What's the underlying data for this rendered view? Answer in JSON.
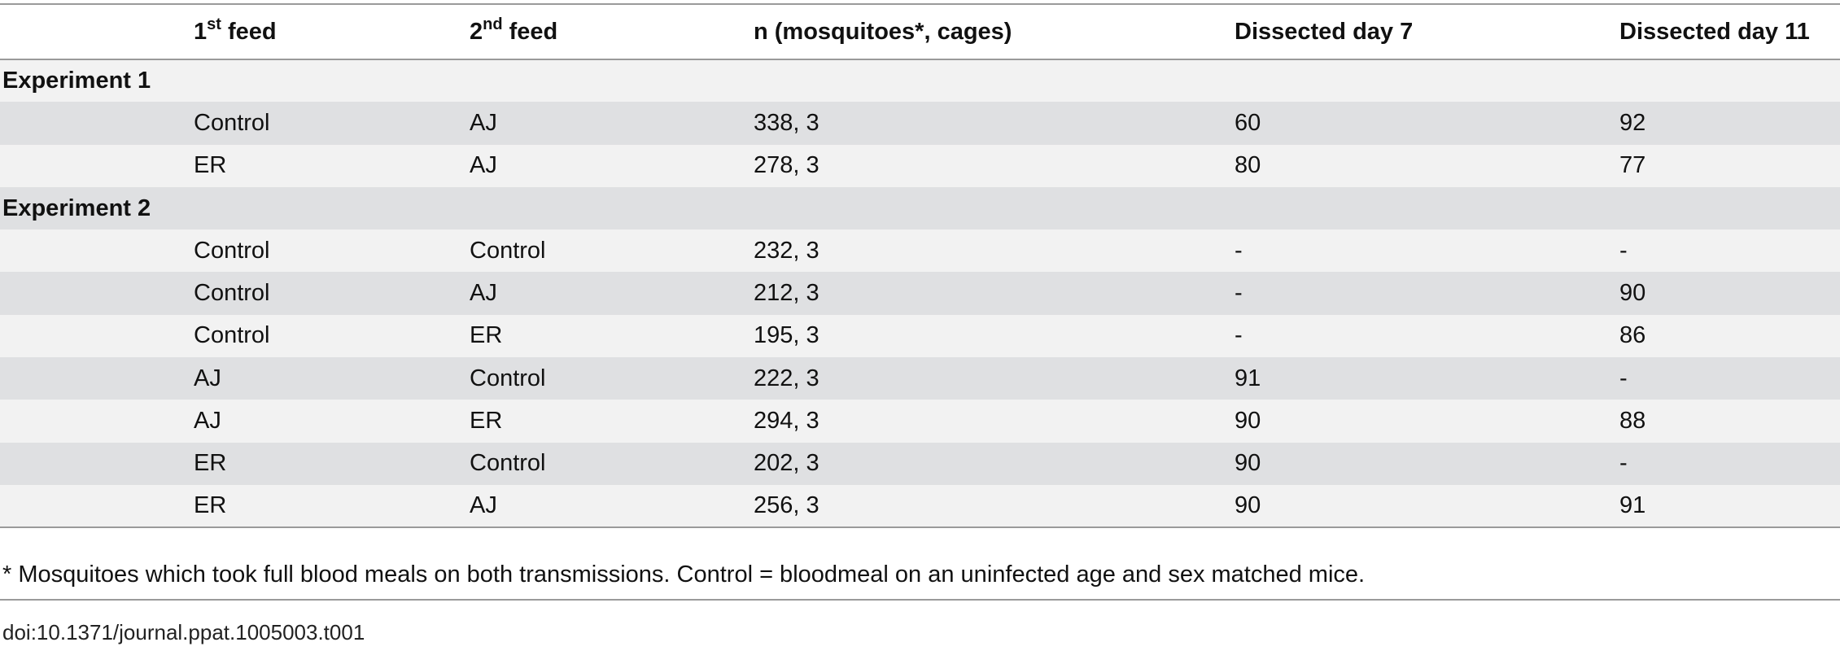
{
  "table": {
    "columns": [
      {
        "base": "1",
        "sup": "st",
        "tail": "feed"
      },
      {
        "base": "2",
        "sup": "nd",
        "tail": "feed"
      },
      {
        "text": "n (mosquitoes*, cages)"
      },
      {
        "text": "Dissected day 7"
      },
      {
        "text": "Dissected day 11"
      }
    ],
    "groups": [
      {
        "label": "Experiment 1",
        "rows": [
          [
            "Control",
            "AJ",
            "338, 3",
            "60",
            "92"
          ],
          [
            "ER",
            "AJ",
            "278, 3",
            "80",
            "77"
          ]
        ]
      },
      {
        "label": "Experiment 2",
        "rows": [
          [
            "Control",
            "Control",
            "232, 3",
            "-",
            "-"
          ],
          [
            "Control",
            "AJ",
            "212, 3",
            "-",
            "90"
          ],
          [
            "Control",
            "ER",
            "195, 3",
            "-",
            "86"
          ],
          [
            "AJ",
            "Control",
            "222, 3",
            "91",
            "-"
          ],
          [
            "AJ",
            "ER",
            "294, 3",
            "90",
            "88"
          ],
          [
            "ER",
            "Control",
            "202, 3",
            "90",
            "-"
          ],
          [
            "ER",
            "AJ",
            "256, 3",
            "90",
            "91"
          ]
        ]
      }
    ],
    "footnote": "* Mosquitoes which took full blood meals on both transmissions. Control = bloodmeal on an uninfected age and sex matched mice.",
    "doi": "doi:10.1371/journal.ppat.1005003.t001"
  }
}
